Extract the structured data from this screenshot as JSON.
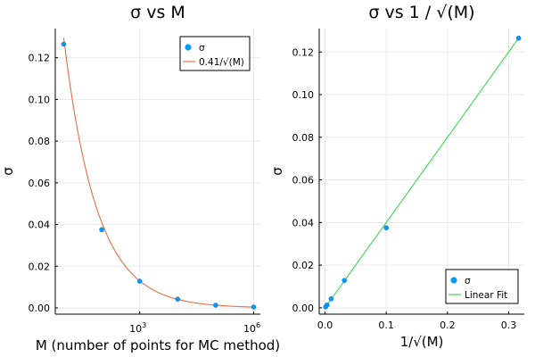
{
  "chart_data": [
    {
      "type": "scatter",
      "title": "σ vs M",
      "xlabel": "M (number of points for MC method)",
      "ylabel": "σ",
      "xscale": "log",
      "xlim": [
        6,
        1500000
      ],
      "ylim": [
        -0.003,
        0.134
      ],
      "x_ticks": [
        {
          "value": 1000,
          "base": "10",
          "exp": "3"
        },
        {
          "value": 1000000,
          "base": "10",
          "exp": "6"
        }
      ],
      "y_ticks": [
        {
          "value": 0.0,
          "label": "0.00"
        },
        {
          "value": 0.02,
          "label": "0.02"
        },
        {
          "value": 0.04,
          "label": "0.04"
        },
        {
          "value": 0.06,
          "label": "0.06"
        },
        {
          "value": 0.08,
          "label": "0.08"
        },
        {
          "value": 0.1,
          "label": "0.10"
        },
        {
          "value": 0.12,
          "label": "0.12"
        }
      ],
      "grid": true,
      "legend_position": "top-right",
      "series": [
        {
          "name": "σ",
          "kind": "scatter",
          "color": "#009af9",
          "x": [
            10,
            100,
            1000,
            10000,
            100000,
            1000000
          ],
          "y": [
            0.1265,
            0.0375,
            0.0128,
            0.0042,
            0.0013,
            0.0004
          ]
        },
        {
          "name": "0.41/√(M)",
          "kind": "line",
          "color": "#e26f46",
          "formula": "0.41/sqrt(M)"
        }
      ]
    },
    {
      "type": "scatter",
      "title": "σ vs 1 / √(M)",
      "xlabel": "1/√(M)",
      "ylabel": "σ",
      "xlim": [
        -0.0095,
        0.3255
      ],
      "ylim": [
        -0.003,
        0.131
      ],
      "x_ticks": [
        {
          "value": 0.0,
          "label": "0.0"
        },
        {
          "value": 0.1,
          "label": "0.1"
        },
        {
          "value": 0.2,
          "label": "0.2"
        },
        {
          "value": 0.3,
          "label": "0.3"
        }
      ],
      "y_ticks": [
        {
          "value": 0.0,
          "label": "0.00"
        },
        {
          "value": 0.02,
          "label": "0.02"
        },
        {
          "value": 0.04,
          "label": "0.04"
        },
        {
          "value": 0.06,
          "label": "0.06"
        },
        {
          "value": 0.08,
          "label": "0.08"
        },
        {
          "value": 0.1,
          "label": "0.10"
        },
        {
          "value": 0.12,
          "label": "0.12"
        }
      ],
      "grid": true,
      "legend_position": "bottom-right",
      "series": [
        {
          "name": "σ",
          "kind": "scatter",
          "color": "#009af9",
          "x": [
            0.3162,
            0.1,
            0.0316,
            0.01,
            0.0032,
            0.001
          ],
          "y": [
            0.1265,
            0.0375,
            0.0128,
            0.0042,
            0.0013,
            0.0004
          ]
        },
        {
          "name": "Linear Fit",
          "kind": "line",
          "color": "#3cd94f",
          "x": [
            0.001,
            0.3162
          ],
          "y": [
            0.0004,
            0.1265
          ]
        }
      ]
    }
  ]
}
